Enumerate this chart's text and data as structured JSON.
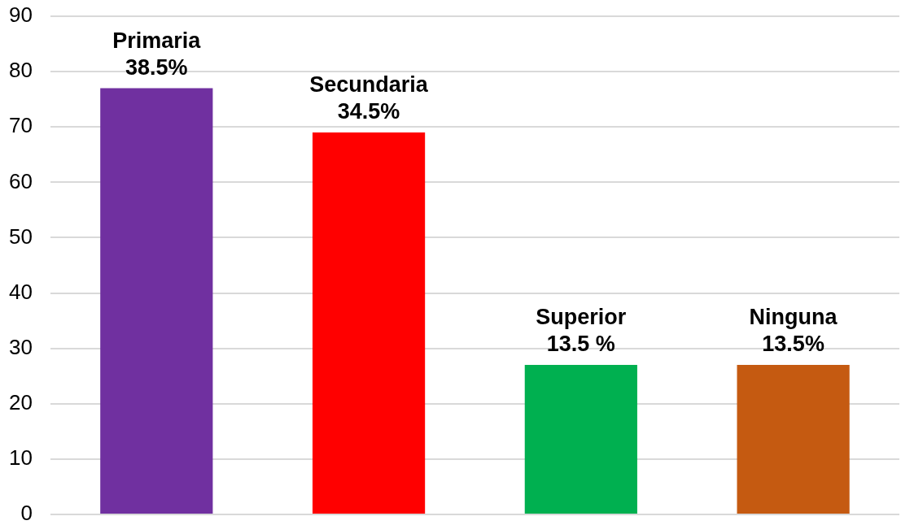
{
  "chart_data": {
    "type": "bar",
    "categories": [
      "Primaria",
      "Secundaria",
      "Superior",
      "Ninguna"
    ],
    "values": [
      77,
      69,
      27,
      27
    ],
    "colors": [
      "#7030a0",
      "#ff0000",
      "#00b050",
      "#c55a11"
    ],
    "annotations": [
      {
        "text": "38.5%",
        "x": "Primaria",
        "y": 77
      },
      {
        "text": "34.5%",
        "x": "Secundaria",
        "y": 69
      },
      {
        "text": "13.5 %",
        "x": "Superior",
        "y": 27
      },
      {
        "text": "13.5%",
        "x": "Ninguna",
        "y": 27
      }
    ],
    "ylim": [
      0,
      90
    ],
    "yticks": [
      0,
      10,
      20,
      30,
      40,
      50,
      60,
      70,
      80,
      90
    ],
    "grid": "y",
    "tick_labels": "y"
  }
}
